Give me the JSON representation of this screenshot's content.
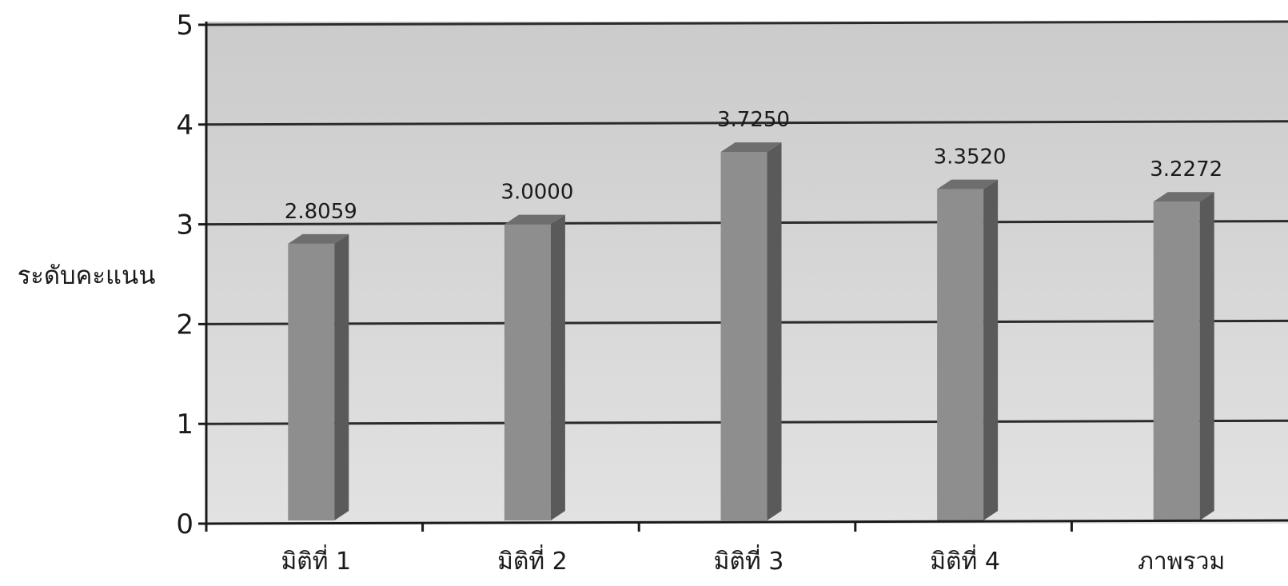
{
  "chart_data": {
    "type": "bar",
    "title": "",
    "xlabel": "",
    "ylabel": "ระดับคะแนน",
    "categories": [
      "มิติที่ 1",
      "มิติที่ 2",
      "มิติที่ 3",
      "มิติที่ 4",
      "ภาพรวม"
    ],
    "values": [
      2.8059,
      3.0,
      3.725,
      3.352,
      3.2272
    ],
    "value_labels": [
      "2.8059",
      "3.0000",
      "3.7250",
      "3.3520",
      "3.2272"
    ],
    "ylim": [
      0,
      5
    ],
    "yticks": [
      "0",
      "1",
      "2",
      "3",
      "4",
      "5"
    ],
    "grid": true,
    "legend": "none",
    "style": "3d-bar"
  },
  "colors": {
    "bar_front": "#8e8e8e",
    "bar_side": "#5a5a5a",
    "bar_top": "#6e6e6e",
    "plot_bg": "#d7d7d7",
    "grid": "#2b2b2b"
  }
}
